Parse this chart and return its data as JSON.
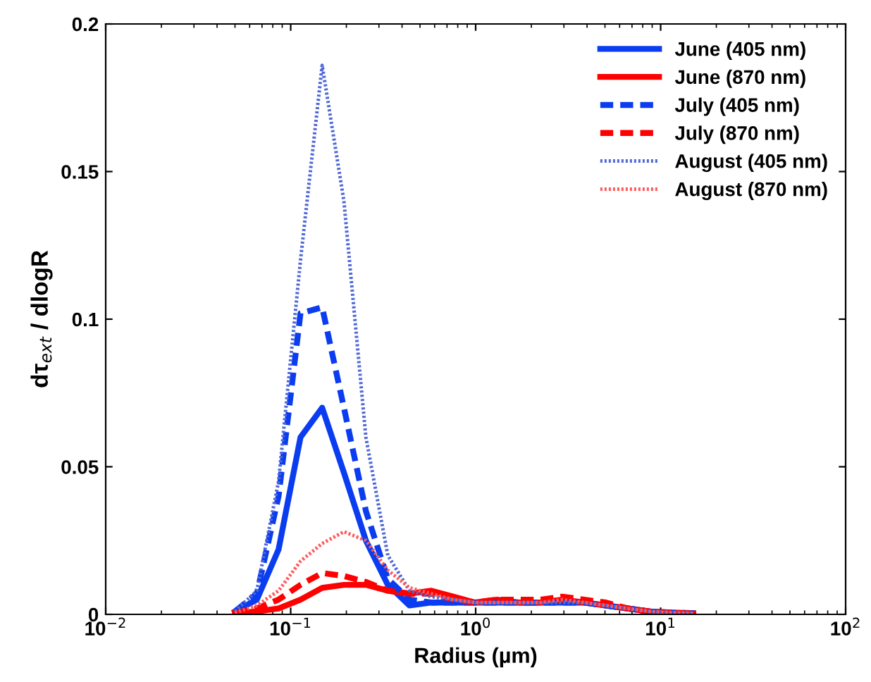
{
  "chart_data": {
    "type": "line",
    "xlabel": "Radius (µm)",
    "ylabel": "dτ$_{ext}$ / dlogR",
    "log": "x",
    "grid": false,
    "legend": "top right",
    "x": [
      0.05,
      0.0656,
      0.086,
      0.113,
      0.148,
      0.194,
      0.255,
      0.335,
      0.439,
      0.576,
      0.756,
      0.992,
      1.302,
      1.708,
      2.241,
      2.94,
      3.857,
      5.06,
      6.64,
      8.71,
      11.43,
      15.0
    ],
    "xlim": [
      0.01,
      100
    ],
    "xticks": [
      {
        "value": 0.01,
        "label": "10$^{−2}$"
      },
      {
        "value": 0.1,
        "label": "10$^{−1}$"
      },
      {
        "value": 1,
        "label": "10$^{0}$"
      },
      {
        "value": 10,
        "label": "10$^{1}$"
      },
      {
        "value": 100,
        "label": "10$^{2}$"
      }
    ],
    "ylim": [
      0,
      0.2
    ],
    "yticks": [
      0,
      0.05,
      0.1,
      0.15,
      0.2
    ],
    "series": [
      {
        "name": "June (405 nm)",
        "color": "#0a3cf0",
        "line_style": "solid",
        "values": [
          0.001,
          0.005,
          0.022,
          0.06,
          0.07,
          0.048,
          0.025,
          0.01,
          0.003,
          0.004,
          0.004,
          0.004,
          0.004,
          0.004,
          0.004,
          0.004,
          0.004,
          0.003,
          0.002,
          0.001,
          0.0006,
          0.0004
        ]
      },
      {
        "name": "June (870 nm)",
        "color": "#ff0000",
        "line_style": "solid",
        "values": [
          0.0005,
          0.001,
          0.002,
          0.005,
          0.009,
          0.01,
          0.01,
          0.008,
          0.007,
          0.008,
          0.006,
          0.004,
          0.005,
          0.004,
          0.004,
          0.005,
          0.004,
          0.003,
          0.002,
          0.001,
          0.0005,
          0.0003
        ]
      },
      {
        "name": "July (405 nm)",
        "color": "#0a3cf0",
        "line_style": "dashed",
        "values": [
          0.001,
          0.007,
          0.04,
          0.102,
          0.104,
          0.07,
          0.035,
          0.012,
          0.005,
          0.004,
          0.004,
          0.004,
          0.004,
          0.004,
          0.004,
          0.004,
          0.004,
          0.003,
          0.002,
          0.001,
          0.0006,
          0.0004
        ]
      },
      {
        "name": "July (870 nm)",
        "color": "#ff0000",
        "line_style": "dashed",
        "values": [
          0.0005,
          0.002,
          0.005,
          0.01,
          0.014,
          0.013,
          0.011,
          0.008,
          0.007,
          0.007,
          0.005,
          0.004,
          0.005,
          0.005,
          0.005,
          0.006,
          0.005,
          0.004,
          0.002,
          0.001,
          0.0005,
          0.0003
        ]
      },
      {
        "name": "August (405 nm)",
        "color": "#5068d8",
        "line_style": "dotted",
        "values": [
          0.001,
          0.008,
          0.045,
          0.12,
          0.186,
          0.14,
          0.06,
          0.02,
          0.008,
          0.006,
          0.005,
          0.004,
          0.004,
          0.004,
          0.004,
          0.004,
          0.004,
          0.003,
          0.002,
          0.001,
          0.0006,
          0.0004
        ]
      },
      {
        "name": "August (870 nm)",
        "color": "#ff5a5a",
        "line_style": "dotted",
        "values": [
          0.0005,
          0.003,
          0.008,
          0.018,
          0.024,
          0.028,
          0.025,
          0.015,
          0.009,
          0.007,
          0.005,
          0.004,
          0.004,
          0.004,
          0.004,
          0.005,
          0.004,
          0.003,
          0.002,
          0.001,
          0.0005,
          0.0003
        ]
      }
    ]
  }
}
